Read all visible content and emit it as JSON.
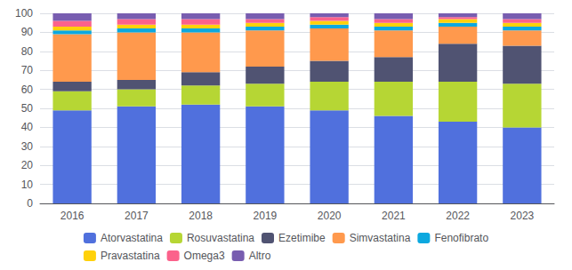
{
  "chart_data": {
    "type": "bar",
    "stacked": true,
    "categories": [
      "2016",
      "2017",
      "2018",
      "2019",
      "2020",
      "2021",
      "2022",
      "2023"
    ],
    "series": [
      {
        "name": "Atorvastatina",
        "values": [
          49,
          51,
          52,
          51,
          49,
          46,
          43,
          40
        ]
      },
      {
        "name": "Rosuvastatina",
        "values": [
          10,
          9,
          10,
          12,
          15,
          18,
          21,
          23
        ]
      },
      {
        "name": "Ezetimibe",
        "values": [
          5,
          5,
          7,
          9,
          11,
          13,
          20,
          20
        ]
      },
      {
        "name": "Simvastatina",
        "values": [
          25,
          25,
          21,
          19,
          17,
          14,
          9,
          8
        ]
      },
      {
        "name": "Fenofibrato",
        "values": [
          2,
          2,
          2,
          2,
          2,
          2,
          2,
          2
        ]
      },
      {
        "name": "Pravastatina",
        "values": [
          2,
          2,
          2,
          2,
          2,
          2,
          2,
          2
        ]
      },
      {
        "name": "Omega3",
        "values": [
          3,
          3,
          3,
          2,
          2,
          2,
          1,
          2
        ]
      },
      {
        "name": "Altro",
        "values": [
          4,
          3,
          3,
          3,
          2,
          3,
          2,
          3
        ]
      }
    ],
    "ylim": [
      0,
      100
    ],
    "yticks": [
      0,
      10,
      20,
      30,
      40,
      50,
      60,
      70,
      80,
      90,
      100
    ],
    "grid": true,
    "legend": "bottom"
  }
}
